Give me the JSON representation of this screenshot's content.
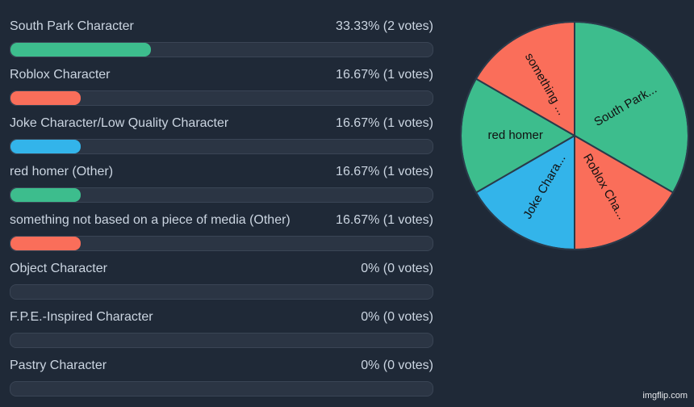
{
  "chart_data": [
    {
      "type": "bar",
      "categories": [
        "South Park Character",
        "Roblox Character",
        "Joke Character/Low Quality Character",
        "red homer (Other)",
        "something not based on a piece of media (Other)",
        "Object Character",
        "F.P.E.-Inspired Character",
        "Pastry Character"
      ],
      "percent": [
        33.33,
        16.67,
        16.67,
        16.67,
        16.67,
        0,
        0,
        0
      ],
      "votes": [
        2,
        1,
        1,
        1,
        1,
        0,
        0,
        0
      ],
      "value_labels": [
        "33.33% (2 votes)",
        "16.67% (1 votes)",
        "16.67% (1 votes)",
        "16.67% (1 votes)",
        "16.67% (1 votes)",
        "0% (0 votes)",
        "0% (0 votes)",
        "0% (0 votes)"
      ],
      "colors": [
        "#3dbd8d",
        "#fa6e5a",
        "#33b4ea",
        "#3dbd8d",
        "#fa6e5a",
        "#3dbd8d",
        "#fa6e5a",
        "#33b4ea"
      ],
      "xlim": [
        0,
        100
      ]
    },
    {
      "type": "pie",
      "slices": [
        {
          "label": "South Park...",
          "value": 2,
          "color": "#3dbd8d"
        },
        {
          "label": "Roblox Cha...",
          "value": 1,
          "color": "#fa6e5a"
        },
        {
          "label": "Joke Chara...",
          "value": 1,
          "color": "#33b4ea"
        },
        {
          "label": "red homer",
          "value": 1,
          "color": "#3dbd8d"
        },
        {
          "label": "something ...",
          "value": 1,
          "color": "#fa6e5a"
        }
      ]
    }
  ],
  "watermark": "imgflip.com"
}
